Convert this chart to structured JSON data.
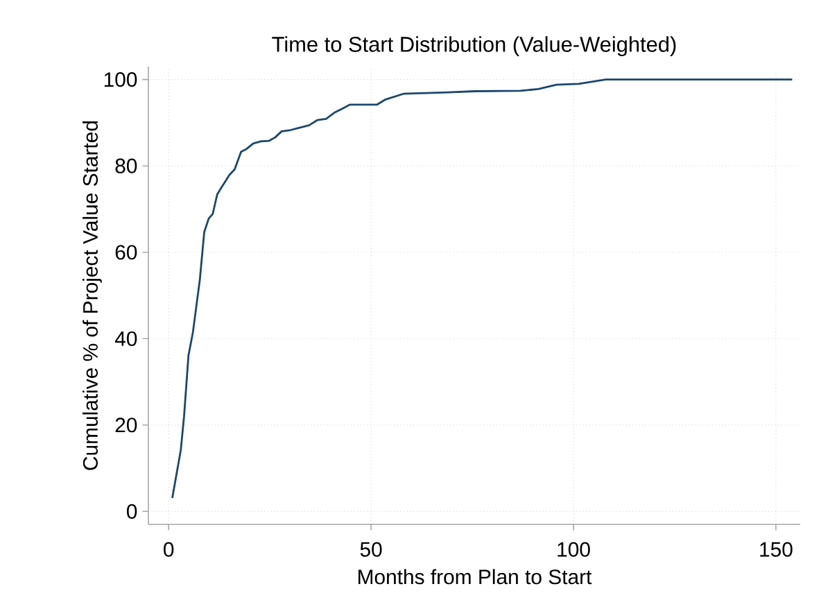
{
  "chart_data": {
    "type": "line",
    "title": "Time to Start Distribution (Value-Weighted)",
    "xlabel": "Months from Plan to Start",
    "ylabel": "Cumulative % of Project Value Started",
    "xlim": [
      -5,
      156
    ],
    "ylim": [
      -3,
      103
    ],
    "xticks": [
      0,
      50,
      100,
      150
    ],
    "yticks": [
      0,
      20,
      40,
      60,
      80,
      100
    ],
    "grid": true,
    "marker": "none",
    "line_style": "solid",
    "series": [
      {
        "color": "#1a476f",
        "x": [
          0.9,
          3.0,
          3.8,
          4.9,
          6.0,
          7.7,
          8.8,
          9.9,
          10.9,
          12.0,
          13.1,
          14.2,
          15.0,
          16.3,
          17.9,
          19.2,
          20.9,
          22.9,
          24.8,
          26.3,
          27.9,
          30.1,
          32.5,
          34.7,
          36.7,
          38.9,
          40.9,
          42.8,
          44.8,
          51.5,
          53.6,
          58,
          68,
          75.8,
          86.9,
          91.3,
          95.8,
          101.3,
          108,
          154
        ],
        "values": [
          3.1,
          14.2,
          21.9,
          36.1,
          41.5,
          53.6,
          64.7,
          67.8,
          68.9,
          73.4,
          75.1,
          76.7,
          77.9,
          79.2,
          83.3,
          83.9,
          85.2,
          85.7,
          85.8,
          86.6,
          88.0,
          88.3,
          88.9,
          89.4,
          90.6,
          90.9,
          92.3,
          93.2,
          94.2,
          94.2,
          95.4,
          96.7,
          97.0,
          97.3,
          97.4,
          97.8,
          98.8,
          99.0,
          100,
          100
        ]
      }
    ]
  }
}
